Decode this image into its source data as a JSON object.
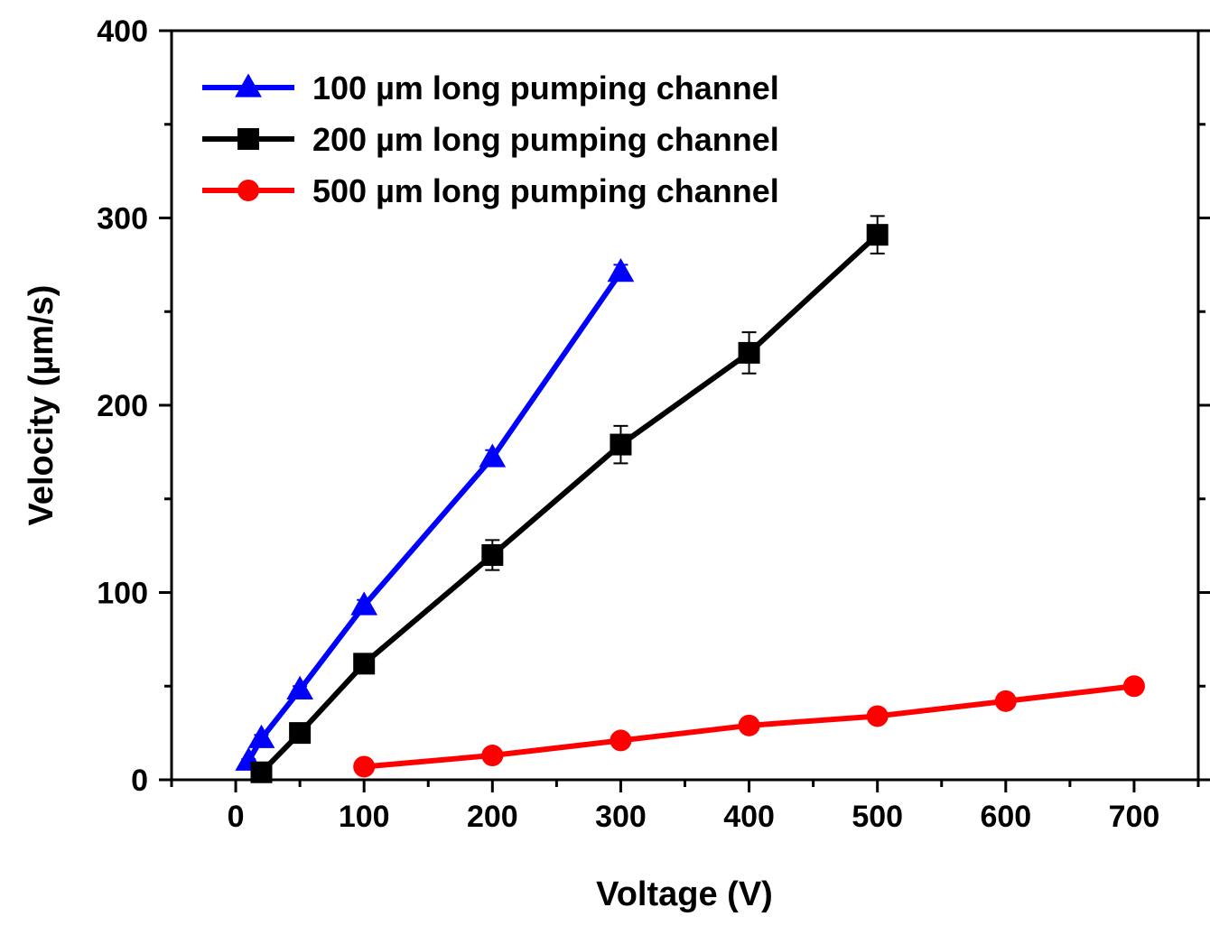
{
  "chart_data": {
    "type": "line",
    "xlabel": "Voltage (V)",
    "ylabel": "Velocity (µm/s)",
    "xlim": [
      -50,
      750
    ],
    "ylim": [
      0,
      400
    ],
    "x_ticks": [
      0,
      100,
      200,
      300,
      400,
      500,
      600,
      700
    ],
    "y_ticks": [
      0,
      100,
      200,
      300,
      400
    ],
    "x_tick_labels": [
      "0",
      "100",
      "200",
      "300",
      "400",
      "500",
      "600",
      "700"
    ],
    "y_tick_labels": [
      "0",
      "100",
      "200",
      "300",
      "400"
    ],
    "grid": false,
    "legend_position": "top-left",
    "series": [
      {
        "name": "100 µm long pumping channel",
        "color": "#0000ff",
        "marker": "triangle",
        "x": [
          10,
          20,
          50,
          100,
          200,
          300
        ],
        "y": [
          10,
          22,
          48,
          93,
          172,
          271
        ],
        "err": [
          1,
          2,
          2,
          3,
          4,
          4
        ]
      },
      {
        "name": "200 µm long pumping channel",
        "color": "#000000",
        "marker": "square",
        "x": [
          20,
          50,
          100,
          200,
          300,
          400,
          500
        ],
        "y": [
          4,
          25,
          62,
          120,
          179,
          228,
          291
        ],
        "err": [
          1,
          2,
          3,
          8,
          10,
          11,
          10
        ]
      },
      {
        "name": "500 µm long pumping channel",
        "color": "#ff0000",
        "marker": "circle",
        "x": [
          100,
          200,
          300,
          400,
          500,
          600,
          700
        ],
        "y": [
          7,
          13,
          21,
          29,
          34,
          42,
          50
        ],
        "err": [
          1,
          1,
          1,
          1,
          2,
          3,
          4
        ]
      }
    ]
  }
}
